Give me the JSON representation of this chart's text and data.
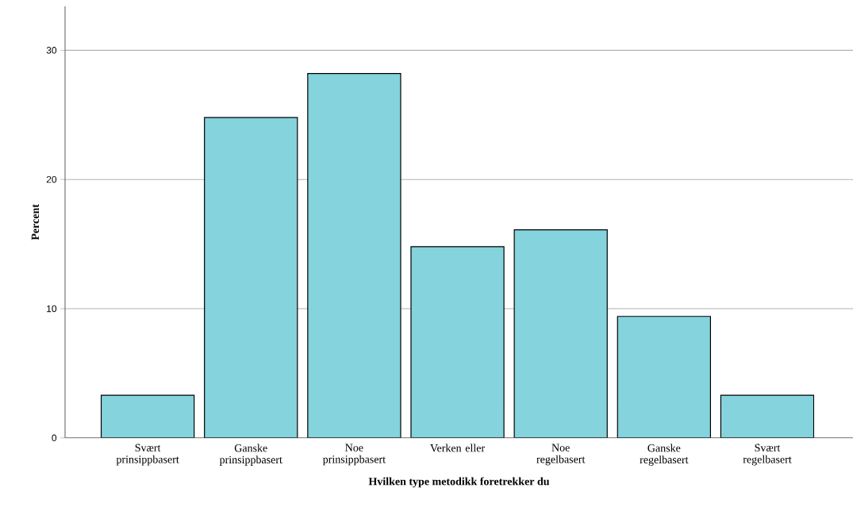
{
  "chart_data": {
    "type": "bar",
    "xlabel": "Hvilken type metodikk foretrekker du",
    "ylabel": "Percent",
    "categories": [
      "Svært prinsippbasert",
      "Ganske prinsippbasert",
      "Noe prinsippbasert",
      "Verken eller",
      "Noe regelbasert",
      "Ganske regelbasert",
      "Svært regelbasert"
    ],
    "values": [
      3.3,
      24.8,
      28.2,
      14.8,
      16.1,
      9.4,
      3.3
    ],
    "color": "#85d3dc",
    "ylim": [
      0,
      33.4
    ],
    "yticks": [
      0,
      10,
      20,
      30
    ],
    "grid": "y"
  }
}
